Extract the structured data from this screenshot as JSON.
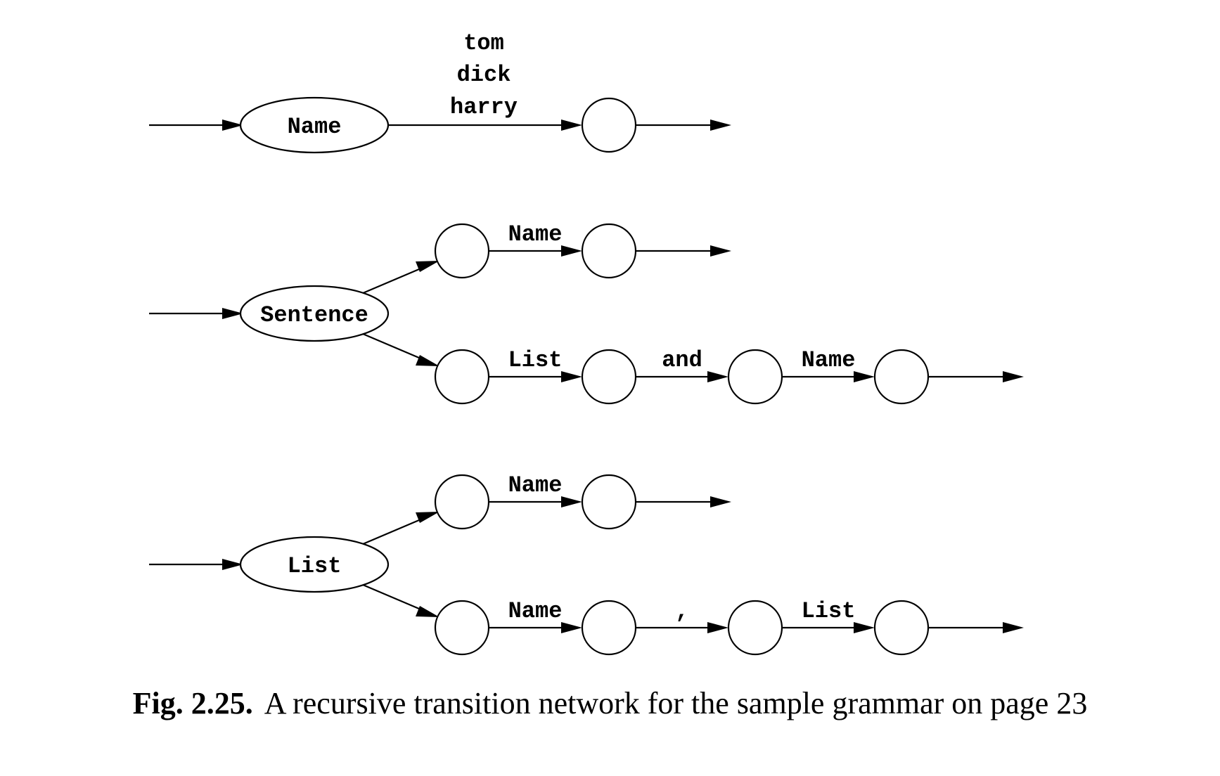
{
  "figure": {
    "caption_number": "Fig. 2.25.",
    "caption_text": "A recursive transition network for the sample grammar on page 23"
  },
  "networks": [
    {
      "nonterminal": "Name",
      "branches": [
        {
          "edge_labels": [
            "tom",
            "dick",
            "harry"
          ]
        }
      ]
    },
    {
      "nonterminal": "Sentence",
      "branches": [
        {
          "edge_labels": [
            "Name"
          ]
        },
        {
          "edge_labels": [
            "List",
            "and",
            "Name"
          ]
        }
      ]
    },
    {
      "nonterminal": "List",
      "branches": [
        {
          "edge_labels": [
            "Name"
          ]
        },
        {
          "edge_labels": [
            "Name",
            ",",
            "List"
          ]
        }
      ]
    }
  ]
}
